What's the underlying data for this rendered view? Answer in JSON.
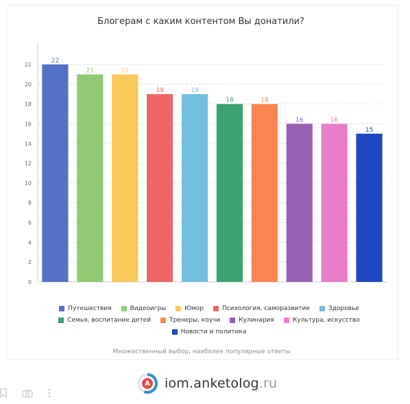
{
  "chart_data": {
    "type": "bar",
    "title": "Блогерам с каким контентом Вы донатили?",
    "categories": [
      "Путешествия",
      "Видеоигры",
      "Юмор",
      "Психология, саморазвитие",
      "Здоровье",
      "Семья, воспитание детей",
      "Тренеры, коучи",
      "Кулинария",
      "Культура, искусство",
      "Новости и политика"
    ],
    "values": [
      22,
      21,
      21,
      19,
      19,
      18,
      18,
      16,
      16,
      15
    ],
    "colors": [
      "#5470c6",
      "#91cc75",
      "#fac858",
      "#ee6666",
      "#73c0de",
      "#3ba272",
      "#fc8452",
      "#9a60b4",
      "#ea7ccc",
      "#1f48c4"
    ],
    "ylim": [
      0,
      22
    ],
    "yticks": [
      0,
      2,
      4,
      6,
      8,
      10,
      12,
      14,
      16,
      18,
      20,
      22
    ],
    "grid": true,
    "legend_position": "bottom"
  },
  "footnote": "Множественный выбор, наиболее популярные ответы",
  "brand": {
    "logo_letter": "A",
    "name": "iom.anketolog",
    "tld": ".ru"
  }
}
